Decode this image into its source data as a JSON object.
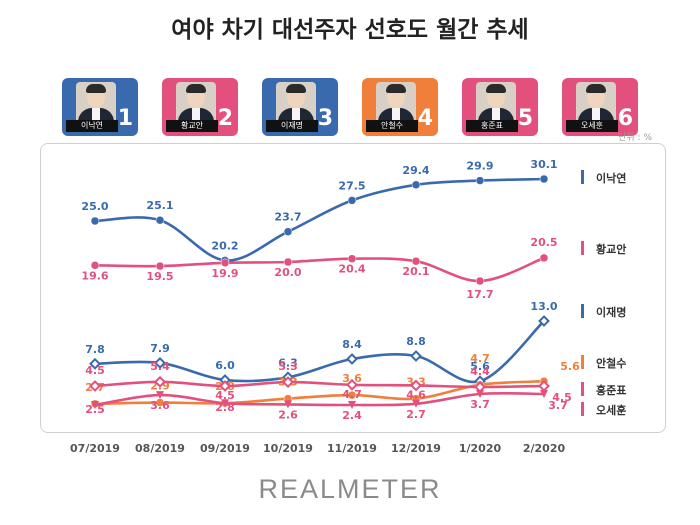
{
  "title": "여야 차기 대선주자 선호도 월간 추세",
  "unit_note": "단위 : %",
  "brand": "REALMETER",
  "candidates": [
    {
      "name": "이낙연",
      "rank": "1",
      "color": "#3a6aae"
    },
    {
      "name": "황교안",
      "rank": "2",
      "color": "#e3507d"
    },
    {
      "name": "이재명",
      "rank": "3",
      "color": "#3a6aae"
    },
    {
      "name": "안철수",
      "rank": "4",
      "color": "#ef7f3a"
    },
    {
      "name": "홍준표",
      "rank": "5",
      "color": "#e3507d"
    },
    {
      "name": "오세훈",
      "rank": "6",
      "color": "#e3507d"
    }
  ],
  "chart_data": {
    "type": "line",
    "title": "여야 차기 대선주자 선호도 월간 추세",
    "xlabel": "",
    "ylabel": "",
    "unit": "%",
    "categories": [
      "07/2019",
      "08/2019",
      "09/2019",
      "10/2019",
      "11/2019",
      "12/2019",
      "1/2020",
      "2/2020"
    ],
    "legend_placement": "right",
    "grid": false,
    "series": [
      {
        "name": "이낙연",
        "color": "#3a6aae",
        "values": [
          25.0,
          25.1,
          20.2,
          23.7,
          27.5,
          29.4,
          29.9,
          30.1
        ],
        "labels": [
          "25.0",
          "25.1",
          "20.2",
          "23.7",
          "27.5",
          "29.4",
          "29.9",
          "30.1"
        ]
      },
      {
        "name": "황교안",
        "color": "#e3507d",
        "values": [
          19.6,
          19.5,
          19.9,
          20.0,
          20.4,
          20.1,
          17.7,
          20.5
        ],
        "labels": [
          "19.6",
          "19.5",
          "19.9",
          "20.0",
          "20.4",
          "20.1",
          "17.7",
          "20.5"
        ]
      },
      {
        "name": "이재명",
        "color": "#3a6aae",
        "values": [
          7.8,
          7.9,
          6.0,
          6.3,
          8.4,
          8.8,
          5.6,
          13.0
        ],
        "labels": [
          "7.8",
          "7.9",
          "6.0",
          "6.3",
          "8.4",
          "8.8",
          "5.6",
          "13.0"
        ]
      },
      {
        "name": "안철수",
        "color": "#ef7f3a",
        "values": [
          2.7,
          2.9,
          2.8,
          3.3,
          3.6,
          3.3,
          4.7,
          5.6
        ],
        "labels": [
          "2.7",
          "2.9",
          "2.8",
          "3.3",
          "3.6",
          "3.3",
          "4.7",
          "5.6"
        ]
      },
      {
        "name": "홍준표",
        "color": "#e3507d",
        "values": [
          4.5,
          5.4,
          4.5,
          5.3,
          4.7,
          4.6,
          4.4,
          4.5
        ],
        "labels": [
          "4.5",
          "5.4",
          "4.5",
          "5.3",
          "4.7",
          "4.6",
          "4.4",
          "4.5"
        ]
      },
      {
        "name": "오세훈",
        "color": "#e3507d",
        "values": [
          2.5,
          3.6,
          2.8,
          2.6,
          2.4,
          2.7,
          3.7,
          3.7
        ],
        "labels": [
          "2.5",
          "3.6",
          "2.8",
          "2.6",
          "2.4",
          "2.7",
          "3.7",
          "3.7"
        ]
      }
    ]
  }
}
